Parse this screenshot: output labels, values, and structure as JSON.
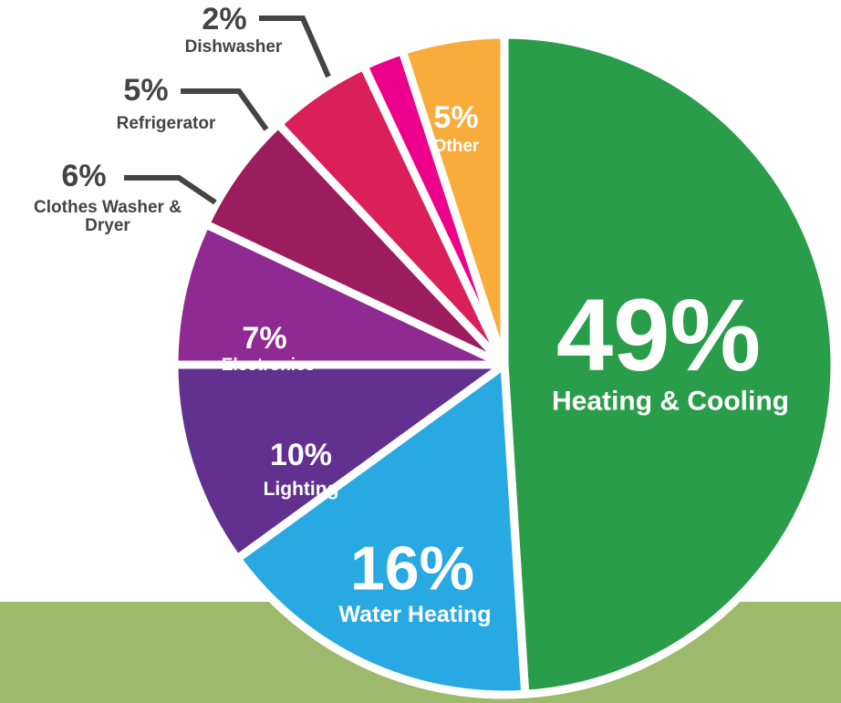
{
  "chart_data": {
    "type": "pie",
    "categories": [
      "Heating & Cooling",
      "Water Heating",
      "Lighting",
      "Electronics",
      "Clothes Washer & Dryer",
      "Refrigerator",
      "Dishwasher",
      "Other"
    ],
    "values": [
      49,
      16,
      10,
      7,
      6,
      5,
      2,
      5
    ],
    "value_labels": [
      "49%",
      "16%",
      "10%",
      "7%",
      "6%",
      "5%",
      "2%",
      "5%"
    ],
    "colors": [
      "#2a9d4b",
      "#29a9e1",
      "#62308f",
      "#8f2a92",
      "#9c1d5e",
      "#da1f5b",
      "#ec008c",
      "#f8ac3c"
    ]
  }
}
